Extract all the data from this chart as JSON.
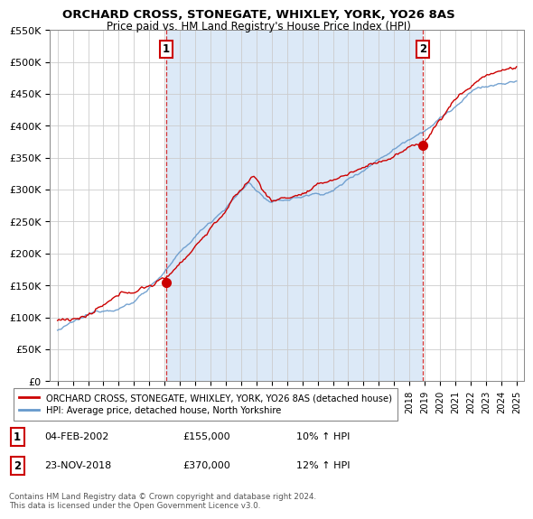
{
  "title": "ORCHARD CROSS, STONEGATE, WHIXLEY, YORK, YO26 8AS",
  "subtitle": "Price paid vs. HM Land Registry's House Price Index (HPI)",
  "hpi_color": "#6699cc",
  "sale_color": "#cc0000",
  "vline_color": "#cc0000",
  "fill_color": "#dce9f7",
  "ylim": [
    0,
    550000
  ],
  "yticks": [
    0,
    50000,
    100000,
    150000,
    200000,
    250000,
    300000,
    350000,
    400000,
    450000,
    500000,
    550000
  ],
  "ytick_labels": [
    "£0",
    "£50K",
    "£100K",
    "£150K",
    "£200K",
    "£250K",
    "£300K",
    "£350K",
    "£400K",
    "£450K",
    "£500K",
    "£550K"
  ],
  "sale1_year": 2002.1,
  "sale1_price": 155000,
  "sale2_year": 2018.9,
  "sale2_price": 370000,
  "legend_sale": "ORCHARD CROSS, STONEGATE, WHIXLEY, YORK, YO26 8AS (detached house)",
  "legend_hpi": "HPI: Average price, detached house, North Yorkshire",
  "table_row1": [
    "1",
    "04-FEB-2002",
    "£155,000",
    "10% ↑ HPI"
  ],
  "table_row2": [
    "2",
    "23-NOV-2018",
    "£370,000",
    "12% ↑ HPI"
  ],
  "footnote": "Contains HM Land Registry data © Crown copyright and database right 2024.\nThis data is licensed under the Open Government Licence v3.0.",
  "background_color": "#ffffff"
}
